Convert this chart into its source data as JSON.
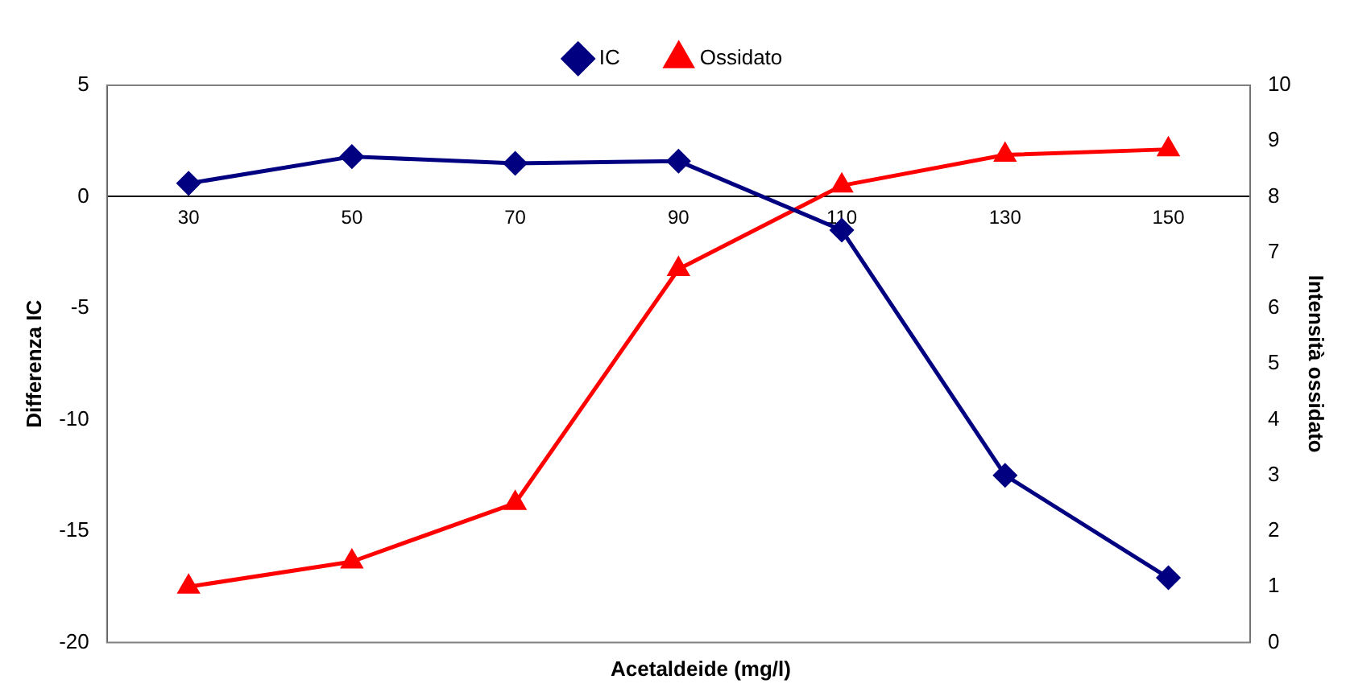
{
  "chart_data": {
    "type": "line",
    "xlabel": "Acetaldeide (mg/l)",
    "ylabel": "Differenza IC",
    "y2label": "Intensità ossidato",
    "categories": [
      "30",
      "50",
      "70",
      "90",
      "110",
      "130",
      "150"
    ],
    "series": [
      {
        "name": "IC",
        "color": "#000080",
        "marker": "diamond",
        "values": [
          0.6,
          1.8,
          1.5,
          1.6,
          -1.5,
          -12.5,
          -17.1
        ]
      },
      {
        "name": "Ossidato",
        "color": "#ff0000",
        "marker": "triangle",
        "axis": "y2",
        "values": [
          1.0,
          1.45,
          2.5,
          6.7,
          8.2,
          8.75,
          8.85
        ]
      }
    ],
    "ylim": [
      -20,
      5
    ],
    "yticks": [
      -20,
      -15,
      -10,
      -5,
      0,
      5
    ],
    "y2lim": [
      0,
      10
    ],
    "y2ticks": [
      0,
      1,
      2,
      3,
      4,
      5,
      6,
      7,
      8,
      9,
      10
    ],
    "grid": false,
    "legend": "top",
    "line_style": "solid"
  }
}
